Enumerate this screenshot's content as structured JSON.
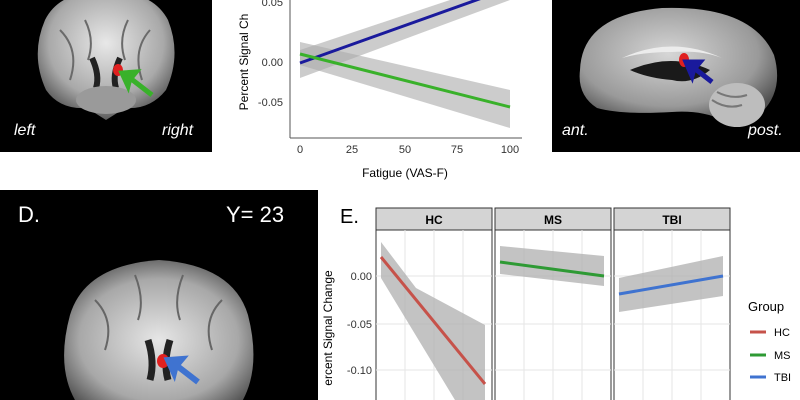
{
  "colors": {
    "hc": "#c6524a",
    "ms": "#2e9a34",
    "tbi": "#3f73d0",
    "top_green": "#39b12a",
    "top_blue": "#1a1a9c",
    "ci": "#aaaaaa",
    "red_blob": "#e02020"
  },
  "panel_top_left": {
    "left_label": "left",
    "right_label": "right",
    "arrow_icon": "green-arrow-icon"
  },
  "panel_top_middle": {
    "ylabel": "Percent Signal Ch",
    "xlabel": "Fatigue (VAS-F)",
    "yticks": [
      "0.05",
      "0.00",
      "-0.05"
    ],
    "xticks": [
      "0",
      "25",
      "50",
      "75",
      "100"
    ]
  },
  "panel_top_right": {
    "left_label": "ant.",
    "right_label": "post.",
    "arrow_icon": "blue-arrow-icon"
  },
  "panel_d": {
    "letter": "D.",
    "coordinate": "Y= 23",
    "arrow_icon": "blue-arrow-icon"
  },
  "panel_e": {
    "letter": "E.",
    "ylabel": "ercent Signal Change",
    "yticks": [
      "0.00",
      "-0.05",
      "-0.10"
    ],
    "facets": [
      "HC",
      "MS",
      "TBI"
    ],
    "legend_title": "Group",
    "legend_items": [
      "HC",
      "MS",
      "TBI"
    ]
  },
  "chart_data": [
    {
      "type": "line",
      "xlabel": "Fatigue (VAS-F)",
      "ylabel": "Percent Signal Ch",
      "xlim": [
        0,
        100
      ],
      "series": [
        {
          "color": "#1a1a9c",
          "x": [
            0,
            100
          ],
          "y": [
            0.0,
            0.085
          ]
        },
        {
          "color": "#39b12a",
          "x": [
            0,
            100
          ],
          "y": [
            0.01,
            -0.055
          ]
        }
      ]
    },
    {
      "type": "line",
      "ylabel": "ercent Signal Change",
      "facets": [
        "HC",
        "MS",
        "TBI"
      ],
      "series": [
        {
          "name": "HC",
          "y": [
            0.02,
            -0.113
          ]
        },
        {
          "name": "MS",
          "y": [
            0.015,
            0.0
          ]
        },
        {
          "name": "TBI",
          "y": [
            -0.02,
            0.0
          ]
        }
      ]
    }
  ]
}
